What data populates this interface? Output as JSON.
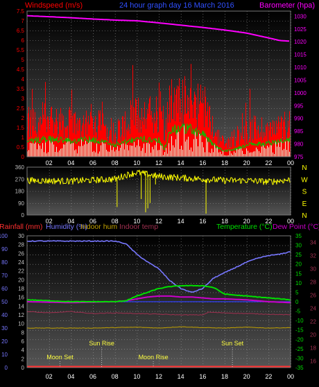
{
  "colors": {
    "wind_gust": "#ff0000",
    "wind_avg": "#00c000",
    "wind_latest": "#e0ffe0",
    "barometer": "#ff00ff",
    "direction": "#ffff00",
    "rain": "#ff3030",
    "humidity": "#7777ff",
    "indoor_hum": "#c0a000",
    "indoor_temp": "#a03050",
    "temperature": "#00e000",
    "dewpoint": "#cc00cc",
    "freezing": "#3040ff",
    "label_blue": "#3050ff",
    "label_gray": "#c0c0c0",
    "label_white": "#ffffff",
    "sun_moon": "#ffff40"
  },
  "chart_data": [
    {
      "type": "bar",
      "id": "wind",
      "title": "24 hour graph day  16 March 2016",
      "left_label": "Windspeed (m/s)",
      "right_label": "Barometer (hpa)",
      "x_ticks": [
        "02",
        "04",
        "06",
        "08",
        "10",
        "12",
        "14",
        "16",
        "18",
        "20",
        "22",
        "00"
      ],
      "x_range": [
        0,
        24
      ],
      "left_ticks": [
        "0",
        "0.5",
        "1",
        "1.5",
        "2",
        "2.5",
        "3",
        "3.5",
        "4",
        "4.5",
        "5",
        "5.5",
        "6",
        "6.5",
        "7",
        "7.5"
      ],
      "left_range": [
        0,
        7.5
      ],
      "right_ticks": [
        "975",
        "980",
        "985",
        "990",
        "995",
        "1000",
        "1005",
        "1010",
        "1015",
        "1020",
        "1025",
        "1030"
      ],
      "right_range": [
        975,
        1032
      ],
      "gust_profile": {
        "hours": [
          0,
          2,
          4,
          6,
          7,
          8,
          9,
          10,
          11,
          12,
          12.5,
          13,
          14,
          15,
          16,
          17,
          17.5,
          18,
          19,
          20,
          21,
          22,
          23,
          24
        ],
        "values": [
          1.6,
          1.8,
          1.6,
          1.7,
          1.5,
          1.2,
          1.6,
          2.0,
          2.1,
          2.1,
          1.2,
          2.5,
          2.7,
          2.6,
          2.4,
          1.3,
          0.9,
          0.6,
          1.0,
          1.2,
          1.4,
          1.3,
          1.4,
          1.7
        ]
      },
      "avg_profile": {
        "hours": [
          0,
          2,
          4,
          6,
          8,
          10,
          12,
          12.5,
          13,
          14,
          15,
          16,
          17,
          18,
          19,
          20,
          22,
          24
        ],
        "values": [
          0.8,
          0.9,
          0.8,
          0.9,
          0.6,
          0.9,
          0.9,
          0.4,
          1.3,
          1.5,
          1.4,
          1.2,
          0.6,
          0.3,
          0.4,
          0.6,
          0.7,
          0.9
        ]
      },
      "barometer": {
        "hours": [
          0,
          2,
          4,
          6,
          8,
          10,
          12,
          14,
          16,
          18,
          20,
          22,
          23,
          24
        ],
        "values": [
          1030.2,
          1029.8,
          1029.4,
          1028.9,
          1028.5,
          1028.2,
          1027.4,
          1026.5,
          1025.6,
          1024.6,
          1023.4,
          1021.5,
          1020.5,
          1020.2
        ]
      }
    },
    {
      "type": "scatter",
      "id": "direction",
      "x_ticks": [
        "02",
        "04",
        "06",
        "08",
        "10",
        "12",
        "14",
        "16",
        "18",
        "20",
        "22",
        "00"
      ],
      "x_range": [
        0,
        24
      ],
      "left_ticks": [
        "0",
        "90",
        "180",
        "270",
        "360"
      ],
      "left_range": [
        0,
        360
      ],
      "right_labels": [
        "N",
        "W",
        "S",
        "E",
        "N"
      ],
      "mean_profile": {
        "hours": [
          0,
          4,
          8,
          9,
          10,
          12,
          14,
          16,
          18,
          20,
          22,
          24
        ],
        "values": [
          260,
          255,
          270,
          300,
          320,
          290,
          280,
          270,
          260,
          260,
          250,
          265
        ]
      },
      "dips": [
        {
          "hour": 8.2,
          "value": 60
        },
        {
          "hour": 10.4,
          "value": 120
        },
        {
          "hour": 11.0,
          "value": 50
        },
        {
          "hour": 10.8,
          "value": 20
        },
        {
          "hour": 11.2,
          "value": 90
        },
        {
          "hour": 16.3,
          "value": 10
        },
        {
          "hour": 11.7,
          "value": 230
        }
      ]
    },
    {
      "type": "line",
      "id": "temp",
      "labels": {
        "rainfall": "Rainfall (mm)",
        "humidity": "Humidity (%)",
        "indoor_hum": "Indoor hum",
        "indoor_temp": "Indoor temp",
        "temperature": "Temperature (°C)",
        "dewpoint": "Dew Point (°C)"
      },
      "x_ticks": [
        "02",
        "04",
        "06",
        "08",
        "10",
        "12",
        "14",
        "16",
        "18",
        "20",
        "22",
        "00"
      ],
      "x_range": [
        0,
        24
      ],
      "humidity_ticks": [
        "0",
        "10",
        "20",
        "30",
        "40",
        "50",
        "60",
        "70",
        "80",
        "90",
        "100"
      ],
      "humidity_range": [
        0,
        100
      ],
      "rain_ticks": [
        "0",
        "2",
        "4",
        "6",
        "8",
        "10",
        "12",
        "14",
        "16",
        "18",
        "20",
        "22",
        "24",
        "26",
        "28",
        "30"
      ],
      "rain_range": [
        0,
        30
      ],
      "temp_ticks": [
        "-35",
        "-30",
        "-25",
        "-20",
        "-15",
        "-10",
        "-5",
        "0",
        "5",
        "10",
        "15",
        "20",
        "25",
        "30",
        "35"
      ],
      "temp_range": [
        -35,
        35
      ],
      "indoor_ticks": [
        "16",
        "18",
        "20",
        "22",
        "24",
        "26",
        "28",
        "30",
        "32",
        "34"
      ],
      "indoor_range": [
        15,
        35
      ],
      "humidity": {
        "hours": [
          0,
          4,
          8,
          9,
          10,
          11,
          12,
          13,
          14,
          15,
          16,
          17,
          18,
          19,
          20,
          21,
          22,
          23,
          24
        ],
        "values": [
          96,
          96,
          96,
          94,
          86,
          80,
          75,
          66,
          60,
          57,
          60,
          68,
          72,
          76,
          80,
          83,
          85,
          86,
          88
        ]
      },
      "temperature": {
        "hours": [
          0,
          2,
          4,
          6,
          8,
          9,
          10,
          11,
          12,
          13,
          14,
          15,
          16,
          17,
          18,
          20,
          22,
          24
        ],
        "values": [
          1,
          0.5,
          0,
          0,
          0,
          0.5,
          3,
          5,
          7,
          8,
          8.5,
          8.5,
          8.5,
          7.5,
          4,
          3,
          2,
          1
        ]
      },
      "dewpoint": {
        "hours": [
          0,
          4,
          8,
          9,
          10,
          11,
          12,
          13,
          14,
          15,
          16,
          17,
          18,
          20,
          22,
          24
        ],
        "values": [
          0,
          -0.5,
          0,
          0.5,
          1.5,
          2.5,
          3,
          3,
          2.5,
          2.5,
          2,
          1.5,
          1.5,
          1,
          0,
          -0.5
        ]
      },
      "indoor_temp": {
        "hours": [
          0,
          2,
          4,
          6,
          8,
          10,
          12,
          14,
          15,
          16,
          16.5,
          18,
          20,
          22,
          24
        ],
        "values": [
          23.5,
          23.3,
          23.5,
          23.2,
          23.3,
          23.2,
          23.1,
          23.0,
          23.0,
          23.0,
          23.4,
          23.3,
          23.2,
          23.1,
          23.0
        ]
      },
      "indoor_hum": {
        "hours": [
          0,
          6,
          10,
          12,
          14,
          16,
          18,
          20,
          22,
          24
        ],
        "values": [
          9,
          9,
          9.2,
          9,
          9.3,
          9.1,
          9,
          9.2,
          9,
          9.1
        ]
      },
      "rainfall_total": 0,
      "events": [
        {
          "label": "Moon Set",
          "hour": 3.0,
          "text_y": 518
        },
        {
          "label": "Sun Rise",
          "hour": 6.8,
          "text_y": 498
        },
        {
          "label": "Moon Rise",
          "hour": 11.5,
          "text_y": 518
        },
        {
          "label": "Sun Set",
          "hour": 18.7,
          "text_y": 498
        }
      ]
    }
  ]
}
